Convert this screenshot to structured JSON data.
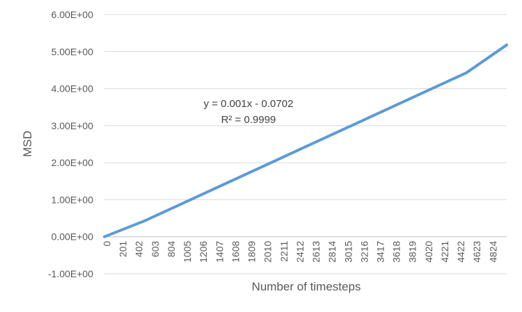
{
  "chart_data": {
    "type": "line",
    "title": "",
    "xlabel": "Number of timesteps",
    "ylabel": "MSD",
    "x_categories": [
      "0",
      "201",
      "402",
      "603",
      "804",
      "1005",
      "1206",
      "1407",
      "1608",
      "1809",
      "2010",
      "2211",
      "2412",
      "2613",
      "2814",
      "3015",
      "3216",
      "3417",
      "3618",
      "3819",
      "4020",
      "4221",
      "4422",
      "4623",
      "4824"
    ],
    "x_range": [
      0,
      5000
    ],
    "ylim": [
      -1.0,
      6.0
    ],
    "y_ticks": [
      {
        "value": -1.0,
        "label": "-1.00E+00"
      },
      {
        "value": 0.0,
        "label": "0.00E+00"
      },
      {
        "value": 1.0,
        "label": "1.00E+00"
      },
      {
        "value": 2.0,
        "label": "2.00E+00"
      },
      {
        "value": 3.0,
        "label": "3.00E+00"
      },
      {
        "value": 4.0,
        "label": "4.00E+00"
      },
      {
        "value": 5.0,
        "label": "5.00E+00"
      },
      {
        "value": 6.0,
        "label": "6.00E+00"
      }
    ],
    "grid": true,
    "legend": "none",
    "series": [
      {
        "color": "#5B9BD5",
        "x": [
          0,
          500,
          1000,
          1500,
          2000,
          2500,
          3000,
          3500,
          4000,
          4500,
          5000
        ],
        "y": [
          0.0,
          0.43,
          0.93,
          1.43,
          1.93,
          2.43,
          2.93,
          3.43,
          3.93,
          4.43,
          5.18
        ]
      }
    ],
    "trendline": {
      "slope": 0.001,
      "intercept": -0.0702,
      "equation": "y = 0.001x - 0.0702",
      "r_squared": "R² = 0.9999"
    }
  }
}
